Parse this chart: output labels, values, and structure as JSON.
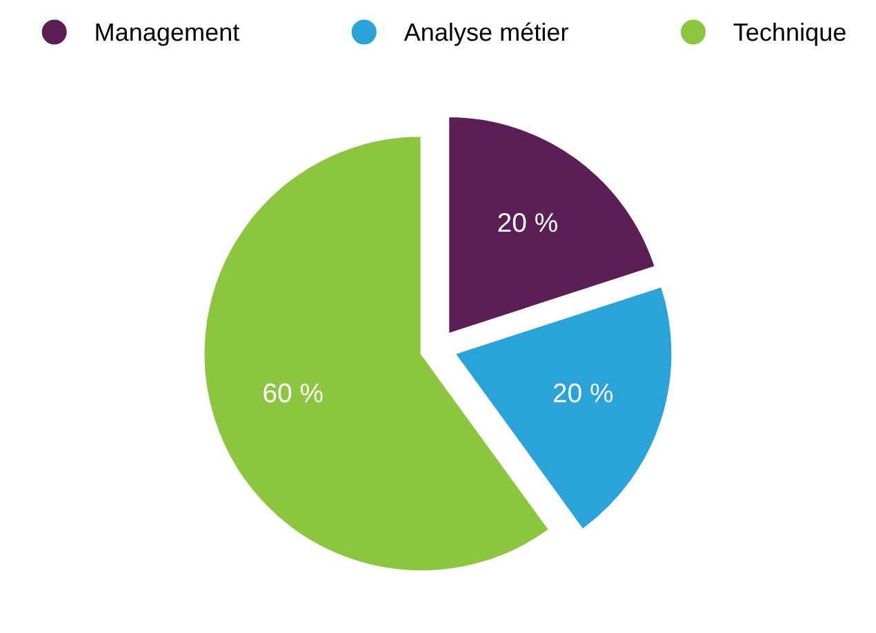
{
  "chart_data": {
    "type": "pie",
    "categories": [
      "Management",
      "Analyse métier",
      "Technique"
    ],
    "values": [
      20,
      20,
      60
    ],
    "colors": [
      "#5b1f56",
      "#2aa3d8",
      "#8cc63f"
    ],
    "value_labels": [
      "20 %",
      "20 %",
      "60 %"
    ],
    "legend": "top"
  }
}
